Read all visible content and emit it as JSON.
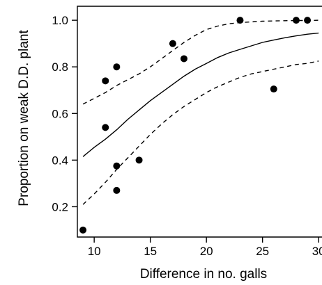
{
  "chart_data": {
    "type": "scatter",
    "title": "",
    "xlabel": "Difference in no. galls",
    "ylabel": "Proportion on weak D.D. plant",
    "xlim": [
      8.5,
      30.3
    ],
    "ylim": [
      0.07,
      1.06
    ],
    "x_ticks": [
      10,
      15,
      20,
      25,
      30
    ],
    "x_tick_labels": [
      "10",
      "15",
      "20",
      "25",
      "30"
    ],
    "y_ticks": [
      0.2,
      0.4,
      0.6,
      0.8,
      1.0
    ],
    "y_tick_labels": [
      "0.2",
      "0.4",
      "0.6",
      "0.8",
      "1.0"
    ],
    "grid": false,
    "series": [
      {
        "kind": "points",
        "x": [
          9,
          11,
          11,
          12,
          12,
          12,
          14,
          17,
          18,
          23,
          26,
          28,
          29
        ],
        "y": [
          0.1,
          0.74,
          0.54,
          0.8,
          0.375,
          0.27,
          0.4,
          0.9,
          0.835,
          1.0,
          0.705,
          1.0,
          1.0
        ]
      },
      {
        "kind": "fit-line",
        "x": [
          9,
          10,
          11,
          12,
          13,
          14,
          15,
          16,
          17,
          18,
          19,
          20,
          21,
          22,
          23,
          24,
          25,
          26,
          27,
          28,
          29,
          30
        ],
        "y": [
          0.415,
          0.455,
          0.49,
          0.53,
          0.575,
          0.615,
          0.655,
          0.69,
          0.725,
          0.76,
          0.79,
          0.815,
          0.84,
          0.86,
          0.875,
          0.89,
          0.905,
          0.915,
          0.925,
          0.933,
          0.94,
          0.945
        ]
      },
      {
        "kind": "upper-band",
        "x": [
          9,
          10,
          11,
          12,
          13,
          14,
          15,
          16,
          17,
          18,
          19,
          20,
          21,
          22,
          23,
          24,
          25,
          26,
          27,
          28,
          29,
          30
        ],
        "y": [
          0.64,
          0.665,
          0.69,
          0.72,
          0.745,
          0.77,
          0.8,
          0.835,
          0.87,
          0.905,
          0.935,
          0.96,
          0.975,
          0.985,
          0.99,
          0.993,
          0.996,
          0.997,
          0.998,
          0.999,
          0.999,
          1.0
        ]
      },
      {
        "kind": "lower-band",
        "x": [
          9,
          10,
          11,
          12,
          13,
          14,
          15,
          16,
          17,
          18,
          19,
          20,
          21,
          22,
          23,
          24,
          25,
          26,
          27,
          28,
          29,
          30
        ],
        "y": [
          0.21,
          0.255,
          0.305,
          0.36,
          0.41,
          0.46,
          0.51,
          0.555,
          0.595,
          0.63,
          0.66,
          0.69,
          0.715,
          0.735,
          0.755,
          0.77,
          0.78,
          0.79,
          0.8,
          0.81,
          0.815,
          0.825
        ]
      }
    ]
  }
}
